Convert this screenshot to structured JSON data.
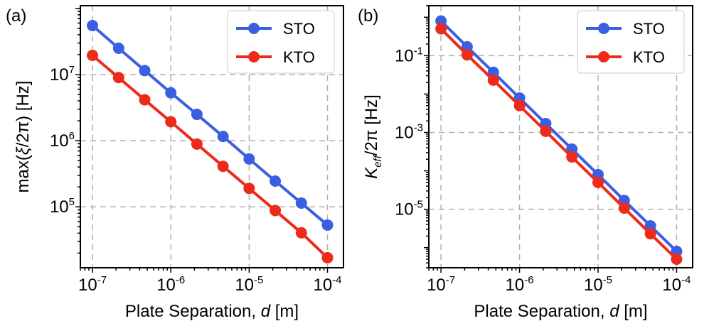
{
  "chart_data": [
    {
      "panel_label": "(a)",
      "type": "line",
      "xscale": "log",
      "yscale": "log",
      "x": [
        1e-07,
        2.154e-07,
        4.642e-07,
        1e-06,
        2.154e-06,
        4.642e-06,
        1e-05,
        2.154e-05,
        4.642e-05,
        0.0001
      ],
      "series": [
        {
          "name": "STO",
          "color": "#3b5fe0",
          "values": [
            55000000,
            25000000,
            11500000,
            5300000,
            2500000,
            1160000,
            530000,
            245000,
            114000,
            53000
          ]
        },
        {
          "name": "KTO",
          "color": "#ee2a1b",
          "values": [
            19500000,
            9000000,
            4150000,
            1930000,
            890000,
            410000,
            190000,
            88000,
            40500,
            17000
          ]
        }
      ],
      "xlim": [
        7e-08,
        0.00016
      ],
      "ylim": [
        12000,
        110000000
      ],
      "xticks": [
        {
          "value": 1e-07,
          "base": "10",
          "exp": "-7"
        },
        {
          "value": 1e-06,
          "base": "10",
          "exp": "-6"
        },
        {
          "value": 1e-05,
          "base": "10",
          "exp": "-5"
        },
        {
          "value": 0.0001,
          "base": "10",
          "exp": "-4"
        }
      ],
      "yticks": [
        {
          "value": 100000,
          "base": "10",
          "exp": "5"
        },
        {
          "value": 1000000,
          "base": "10",
          "exp": "6"
        },
        {
          "value": 10000000,
          "base": "10",
          "exp": "7"
        }
      ],
      "xlabel": {
        "prefix": "Plate Separation, ",
        "var": "d",
        "suffix": " [m]"
      },
      "ylabel": {
        "prefix": "max(",
        "var": "ξ",
        "suffix": "/2π) [Hz]"
      },
      "grid": true,
      "legend": "top-right"
    },
    {
      "panel_label": "(b)",
      "type": "line",
      "xscale": "log",
      "yscale": "log",
      "x": [
        1e-07,
        2.154e-07,
        4.642e-07,
        1e-06,
        2.154e-06,
        4.642e-06,
        1e-05,
        2.154e-05,
        4.642e-05,
        0.0001
      ],
      "series": [
        {
          "name": "STO",
          "color": "#3b5fe0",
          "values": [
            0.8,
            0.17,
            0.037,
            0.0079,
            0.0017,
            0.00037,
            8e-05,
            1.7e-05,
            3.7e-06,
            8e-07
          ]
        },
        {
          "name": "KTO",
          "color": "#ee2a1b",
          "values": [
            0.5,
            0.105,
            0.023,
            0.005,
            0.00107,
            0.00023,
            5e-05,
            1.07e-05,
            2.3e-06,
            5e-07
          ]
        }
      ],
      "xlim": [
        7e-08,
        0.00016
      ],
      "ylim": [
        3e-07,
        2.0
      ],
      "xticks": [
        {
          "value": 1e-07,
          "base": "10",
          "exp": "-7"
        },
        {
          "value": 1e-06,
          "base": "10",
          "exp": "-6"
        },
        {
          "value": 1e-05,
          "base": "10",
          "exp": "-5"
        },
        {
          "value": 0.0001,
          "base": "10",
          "exp": "-4"
        }
      ],
      "yticks": [
        {
          "value": 1e-05,
          "base": "10",
          "exp": "-5"
        },
        {
          "value": 0.001,
          "base": "10",
          "exp": "-3"
        },
        {
          "value": 0.1,
          "base": "10",
          "exp": "-1"
        }
      ],
      "xlabel": {
        "prefix": "Plate Separation, ",
        "var": "d",
        "suffix": " [m]"
      },
      "ylabel": {
        "var": "K",
        "sub": "eff",
        "suffix": "/2π [Hz]"
      },
      "grid": true,
      "legend": "top-right"
    }
  ]
}
